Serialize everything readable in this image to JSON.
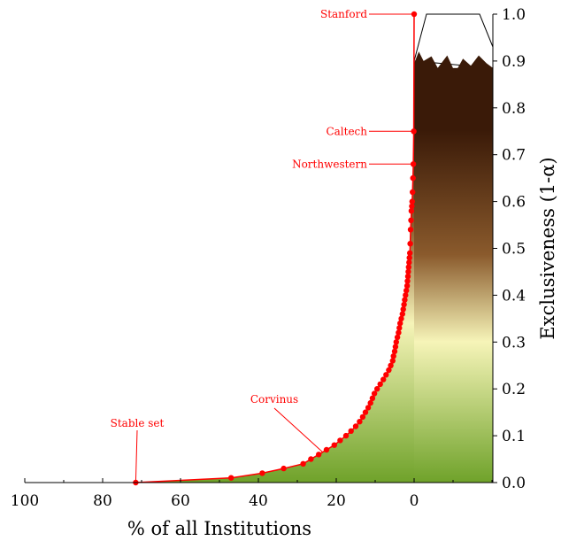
{
  "chart_data": {
    "type": "area",
    "xlabel": "% of all Institutions",
    "ylabel": "Exclusiveness (1-α)",
    "xlim": [
      100,
      0
    ],
    "x_direction": "reversed",
    "ylim": [
      0,
      1.0
    ],
    "x_ticks": [
      "100",
      "80",
      "60",
      "40",
      "20",
      "0"
    ],
    "x_tick_values": [
      100,
      80,
      60,
      40,
      20,
      0
    ],
    "y_ticks": [
      "0.0",
      "0.1",
      "0.2",
      "0.3",
      "0.4",
      "0.5",
      "0.6",
      "0.7",
      "0.8",
      "0.9",
      "1.0"
    ],
    "y_tick_values": [
      0.0,
      0.1,
      0.2,
      0.3,
      0.4,
      0.5,
      0.6,
      0.7,
      0.8,
      0.9,
      1.0
    ],
    "y_axis_side": "right",
    "grid": false,
    "fill_gradient": [
      "#6fa22a",
      "#f6f4b8",
      "#8a5a2c",
      "#3a1a08"
    ],
    "mountain_colors": {
      "peak_fill": "#ffffff",
      "rock_fill": "#3a1a08"
    },
    "curve_color": "#ff0000",
    "series": [
      {
        "values": [
          [
            71.5,
            0.0
          ],
          [
            47,
            0.01
          ],
          [
            39,
            0.02
          ],
          [
            33.5,
            0.03
          ],
          [
            28.5,
            0.04
          ],
          [
            26.5,
            0.05
          ],
          [
            24.5,
            0.06
          ],
          [
            22.5,
            0.07
          ],
          [
            20.5,
            0.08
          ],
          [
            19,
            0.09
          ],
          [
            17.5,
            0.1
          ],
          [
            16.2,
            0.11
          ],
          [
            15,
            0.12
          ],
          [
            14,
            0.13
          ],
          [
            13.2,
            0.14
          ],
          [
            12.5,
            0.15
          ],
          [
            11.8,
            0.16
          ],
          [
            11.2,
            0.17
          ],
          [
            10.7,
            0.18
          ],
          [
            10.2,
            0.19
          ],
          [
            9.5,
            0.2
          ],
          [
            8.7,
            0.21
          ],
          [
            7.9,
            0.22
          ],
          [
            7.2,
            0.23
          ],
          [
            6.5,
            0.24
          ],
          [
            6.0,
            0.25
          ],
          [
            5.5,
            0.26
          ],
          [
            5.3,
            0.27
          ],
          [
            5.0,
            0.28
          ],
          [
            4.8,
            0.29
          ],
          [
            4.6,
            0.3
          ],
          [
            4.3,
            0.31
          ],
          [
            4.0,
            0.32
          ],
          [
            3.8,
            0.33
          ],
          [
            3.6,
            0.34
          ],
          [
            3.3,
            0.35
          ],
          [
            3.0,
            0.36
          ],
          [
            2.8,
            0.37
          ],
          [
            2.6,
            0.38
          ],
          [
            2.4,
            0.39
          ],
          [
            2.2,
            0.4
          ],
          [
            2.0,
            0.41
          ],
          [
            1.8,
            0.42
          ],
          [
            1.7,
            0.43
          ],
          [
            1.6,
            0.44
          ],
          [
            1.5,
            0.45
          ],
          [
            1.4,
            0.46
          ],
          [
            1.3,
            0.47
          ],
          [
            1.2,
            0.48
          ],
          [
            1.1,
            0.49
          ],
          [
            1.0,
            0.51
          ],
          [
            0.9,
            0.54
          ],
          [
            0.8,
            0.56
          ],
          [
            0.7,
            0.58
          ],
          [
            0.6,
            0.59
          ],
          [
            0.5,
            0.6
          ],
          [
            0.4,
            0.62
          ],
          [
            0.3,
            0.65
          ],
          [
            0.2,
            0.68
          ],
          [
            0.1,
            0.75
          ],
          [
            0.0,
            1.0
          ]
        ]
      }
    ],
    "annotations": [
      {
        "text": "Stanford",
        "x": 0.0,
        "y": 1.0
      },
      {
        "text": "Caltech",
        "x": 0.1,
        "y": 0.75
      },
      {
        "text": "Northwestern",
        "x": 0.2,
        "y": 0.68
      },
      {
        "text": "Corvinus",
        "x": 23.5,
        "y": 0.065
      },
      {
        "text": "Stable set",
        "x": 71.5,
        "y": 0.0
      }
    ]
  }
}
